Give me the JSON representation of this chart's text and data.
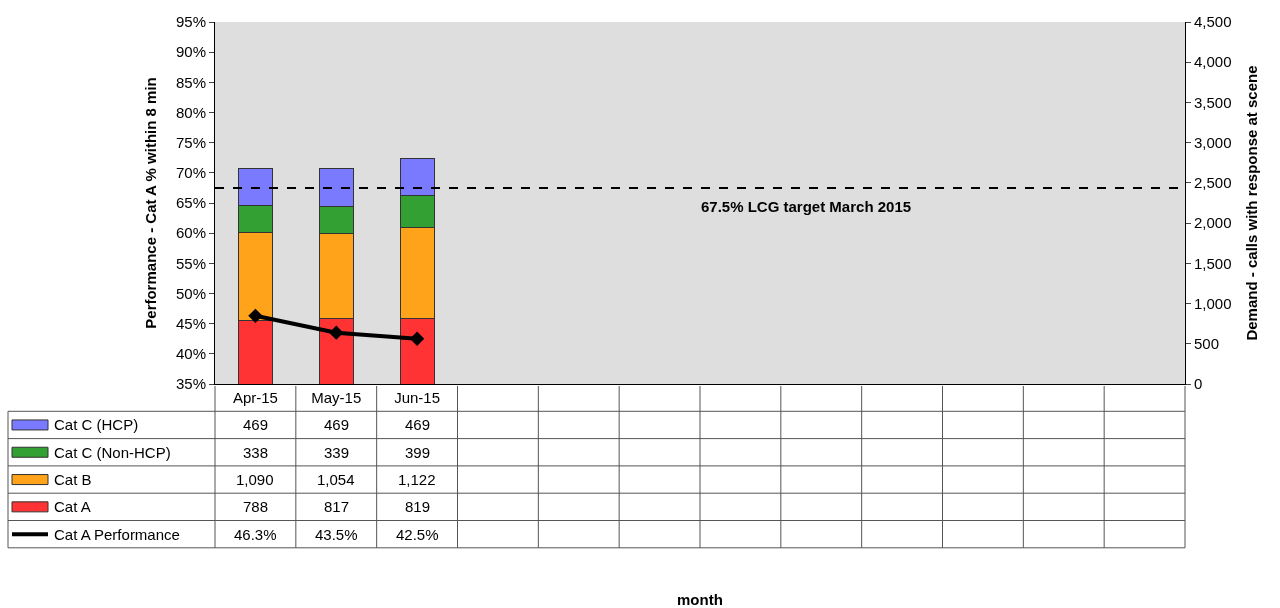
{
  "chart_data": {
    "type": "bar",
    "stacked": true,
    "categories": [
      "Apr-15",
      "May-15",
      "Jun-15",
      null,
      null,
      null,
      null,
      null,
      null,
      null,
      null,
      null
    ],
    "series": [
      {
        "name": "Cat A",
        "color": "#ff3333",
        "axis": "y2",
        "values": [
          788,
          817,
          819,
          null,
          null,
          null,
          null,
          null,
          null,
          null,
          null,
          null
        ],
        "value_labels": [
          "788",
          "817",
          "819",
          null,
          null,
          null,
          null,
          null,
          null,
          null,
          null,
          null
        ]
      },
      {
        "name": "Cat B",
        "color": "#ffa31a",
        "axis": "y2",
        "values": [
          1090,
          1054,
          1122,
          null,
          null,
          null,
          null,
          null,
          null,
          null,
          null,
          null
        ],
        "value_labels": [
          "1,090",
          "1,054",
          "1,122",
          null,
          null,
          null,
          null,
          null,
          null,
          null,
          null,
          null
        ]
      },
      {
        "name": "Cat C (Non-HCP)",
        "color": "#33a033",
        "axis": "y2",
        "values": [
          338,
          339,
          399,
          null,
          null,
          null,
          null,
          null,
          null,
          null,
          null,
          null
        ],
        "value_labels": [
          "338",
          "339",
          "399",
          null,
          null,
          null,
          null,
          null,
          null,
          null,
          null,
          null
        ]
      },
      {
        "name": "Cat C (HCP)",
        "color": "#7a7aff",
        "axis": "y2",
        "values": [
          469,
          469,
          469,
          null,
          null,
          null,
          null,
          null,
          null,
          null,
          null,
          null
        ],
        "value_labels": [
          "469",
          "469",
          "469",
          null,
          null,
          null,
          null,
          null,
          null,
          null,
          null,
          null
        ]
      },
      {
        "name": "Cat A Performance",
        "type": "line",
        "color": "#000000",
        "marker": "diamond",
        "values": [
          46.3,
          43.5,
          42.5,
          null,
          null,
          null,
          null,
          null,
          null,
          null,
          null,
          null
        ],
        "value_labels": [
          "46.3%",
          "43.5%",
          "42.5%",
          null,
          null,
          null,
          null,
          null,
          null,
          null,
          null,
          null
        ]
      }
    ],
    "annotations": [
      "month"
    ],
    "ylabel": "Performance - Cat A % within 8 min",
    "y2label": "Demand - calls with response at scene",
    "legend": "bottom left",
    "ylim": [
      35,
      95
    ],
    "yticks": [
      {
        "value": 35,
        "label": "35%"
      },
      {
        "value": 40,
        "label": "40%"
      },
      {
        "value": 45,
        "label": "45%"
      },
      {
        "value": 50,
        "label": "50%"
      },
      {
        "value": 55,
        "label": "55%"
      },
      {
        "value": 60,
        "label": "60%"
      },
      {
        "value": 65,
        "label": "65%"
      },
      {
        "value": 70,
        "label": "70%"
      },
      {
        "value": 75,
        "label": "75%"
      },
      {
        "value": 80,
        "label": "80%"
      },
      {
        "value": 85,
        "label": "85%"
      },
      {
        "value": 90,
        "label": "90%"
      },
      {
        "value": 95,
        "label": "95%"
      }
    ],
    "y2lim": [
      0,
      4500
    ],
    "y2ticks": [
      0,
      500,
      {
        "value": 1000,
        "label": "1,000"
      },
      {
        "value": 1500,
        "label": "1,500"
      },
      {
        "value": 2000,
        "label": "2,000"
      },
      {
        "value": 2500,
        "label": "2,500"
      },
      {
        "value": 3000,
        "label": "3,000"
      },
      {
        "value": 3500,
        "label": "3,500"
      },
      {
        "value": 4000,
        "label": "4,000"
      },
      {
        "value": 4500,
        "label": "4,500"
      }
    ],
    "ref_lines": [
      {
        "axis": "y",
        "value": 67.5,
        "label": "67.5% LCG target March 2015",
        "color": "#000000",
        "line_style": "dashed"
      }
    ]
  }
}
